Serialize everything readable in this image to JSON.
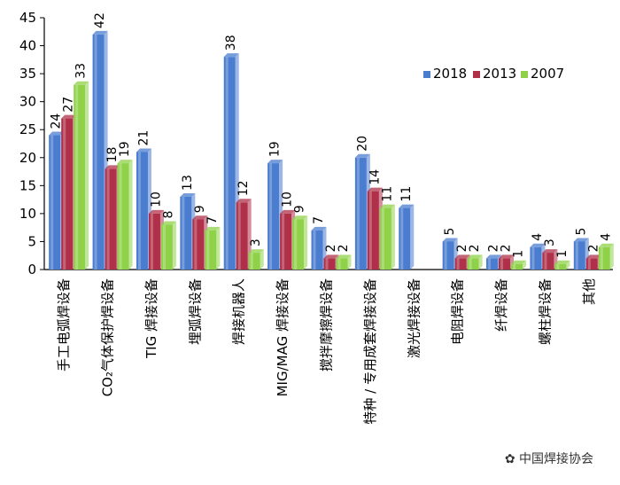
{
  "chart_data": {
    "type": "bar",
    "categories": [
      "手工电弧焊设备",
      "CO₂气体保护焊设备",
      "TIG 焊接设备",
      "埋弧焊设备",
      "焊接机器人",
      "MIG/MAG 焊接设备",
      "搅拌摩擦焊设备",
      "特种 / 专用成套焊接设备",
      "激光焊接设备",
      "电阻焊设备",
      "纤焊设备",
      "螺柱焊设备",
      "其他"
    ],
    "series": [
      {
        "name": "2018",
        "color": "#4a7ccf",
        "values": [
          24,
          42,
          21,
          13,
          38,
          19,
          7,
          20,
          11,
          5,
          2,
          4,
          5
        ],
        "labels": [
          "24",
          "42",
          "21",
          "13",
          "38",
          "19",
          "7",
          "20",
          "11",
          "5",
          "2",
          "4",
          "5"
        ]
      },
      {
        "name": "2013",
        "color": "#b0304a",
        "values": [
          27,
          18,
          10,
          9,
          12,
          10,
          2,
          14,
          null,
          2,
          2,
          3,
          2
        ],
        "labels": [
          "27",
          "18",
          "10",
          "9",
          "12",
          "10",
          "2",
          "14",
          "",
          "2",
          "2",
          "3",
          "2"
        ]
      },
      {
        "name": "2007",
        "color": "#8fd24a",
        "values": [
          33,
          19,
          8,
          7,
          3,
          9,
          2,
          11,
          null,
          2,
          1,
          1,
          4
        ],
        "labels": [
          "33",
          "19",
          "8",
          "7",
          "3",
          "9",
          "2",
          "11",
          "",
          "2",
          "1",
          "1",
          "4"
        ]
      }
    ],
    "yticks": [
      "0",
      "5",
      "10",
      "15",
      "20",
      "25",
      "30",
      "35",
      "40",
      "45"
    ],
    "ylim": [
      0,
      45
    ],
    "legend_position": "top-right",
    "grid": false
  },
  "watermark": "中国焊接协会"
}
